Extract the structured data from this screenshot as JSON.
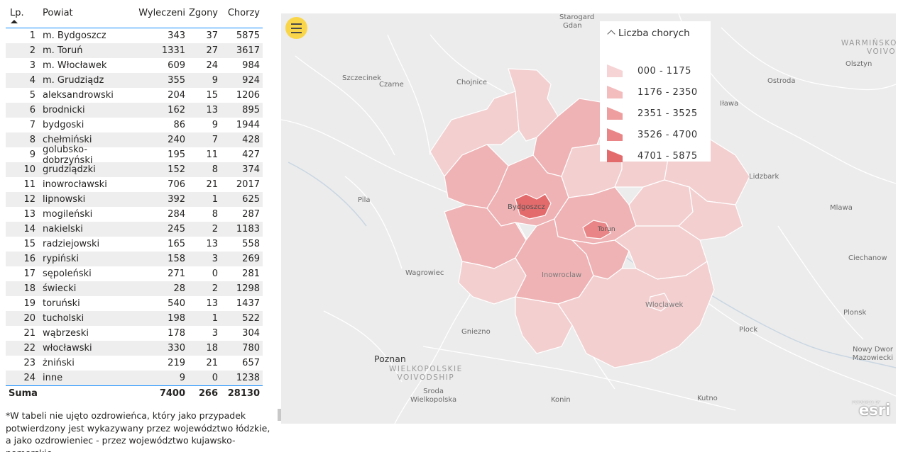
{
  "table": {
    "headers": {
      "lp": "Lp.",
      "powiat": "Powiat",
      "wyleczeni": "Wyleczeni",
      "zgony": "Zgony",
      "chorzy": "Chorzy"
    },
    "rows": [
      [
        "1",
        "m. Bydgoszcz",
        "343",
        "37",
        "5875"
      ],
      [
        "2",
        "m. Toruń",
        "1331",
        "27",
        "3617"
      ],
      [
        "3",
        "m. Włocławek",
        "609",
        "24",
        "984"
      ],
      [
        "4",
        "m. Grudziądz",
        "355",
        "9",
        "924"
      ],
      [
        "5",
        "aleksandrowski",
        "204",
        "15",
        "1206"
      ],
      [
        "6",
        "brodnicki",
        "162",
        "13",
        "895"
      ],
      [
        "7",
        "bydgoski",
        "86",
        "9",
        "1944"
      ],
      [
        "8",
        "chełmiński",
        "240",
        "7",
        "428"
      ],
      [
        "9",
        "golubsko-dobrzyński",
        "195",
        "11",
        "427"
      ],
      [
        "10",
        "grudziądzki",
        "152",
        "8",
        "374"
      ],
      [
        "11",
        "inowrocławski",
        "706",
        "21",
        "2017"
      ],
      [
        "12",
        "lipnowski",
        "392",
        "1",
        "625"
      ],
      [
        "13",
        "mogileński",
        "284",
        "8",
        "287"
      ],
      [
        "14",
        "nakielski",
        "245",
        "2",
        "1183"
      ],
      [
        "15",
        "radziejowski",
        "165",
        "13",
        "558"
      ],
      [
        "16",
        "rypiński",
        "158",
        "3",
        "269"
      ],
      [
        "17",
        "sępoleński",
        "271",
        "0",
        "281"
      ],
      [
        "18",
        "świecki",
        "28",
        "2",
        "1298"
      ],
      [
        "19",
        "toruński",
        "540",
        "13",
        "1437"
      ],
      [
        "20",
        "tucholski",
        "198",
        "1",
        "522"
      ],
      [
        "21",
        "wąbrzeski",
        "178",
        "3",
        "304"
      ],
      [
        "22",
        "włocławski",
        "330",
        "18",
        "780"
      ],
      [
        "23",
        "żniński",
        "219",
        "21",
        "657"
      ],
      [
        "24",
        "inne",
        "9",
        "0",
        "1238"
      ]
    ],
    "sum": {
      "label": "Suma",
      "wyleczeni": "7400",
      "zgony": "266",
      "chorzy": "28130"
    }
  },
  "footnote": [
    "*W tabeli nie ujęto ozdrowieńca, który jako przypadek",
    "potwierdzony jest wykazywany przez województwo łódzkie,",
    "a jako ozdrowieniec - przez województwo kujawsko-pomorskie."
  ],
  "map": {
    "menu_icon": "hamburger-menu-icon",
    "legend": {
      "title": "Liczba chorych",
      "items": [
        {
          "label": "000 - 1175",
          "color": "#f6d3d4"
        },
        {
          "label": "1176 - 2350",
          "color": "#f3bcbd"
        },
        {
          "label": "2351 - 3525",
          "color": "#ee9e9f"
        },
        {
          "label": "3526 - 4700",
          "color": "#e98586"
        },
        {
          "label": "4701 - 5875",
          "color": "#e36b6c"
        }
      ]
    },
    "places": {
      "starogard": "Starogard",
      "gdan": "Gdan",
      "szczecinek": "Szczecinek",
      "czarne": "Czarne",
      "chojnice": "Chojnice",
      "warminsko_l1": "WARMIŃSKO",
      "warminsko_l2": "VOIVOD",
      "olsztyn": "Olsztyn",
      "ostroda": "Ostroda",
      "ilawa": "Iława",
      "lidzbark": "Lidzbark",
      "pila": "Pila",
      "mlawa": "Mlawa",
      "bydgoszcz": "Bydgoszcz",
      "torun": "Torun",
      "ciechanow": "Ciechanow",
      "wagrowiec": "Wagrowiec",
      "inowroclaw": "Inowroclaw",
      "wloclawek": "Wloclawek",
      "plonsk": "Plonsk",
      "plock": "Plock",
      "gniezno": "Gniezno",
      "poznan": "Poznan",
      "wielkopolskie_l1": "WIELKOPOLSKIE",
      "wielkopolskie_l2": "VOIVODSHIP",
      "nowy_dwor_l1": "Nowy Dwor",
      "nowy_dwor_l2": "Mazowiecki",
      "sroda_l1": "Sroda",
      "sroda_l2": "Wielkopolska",
      "konin": "Konin",
      "kutno": "Kutno"
    },
    "esri_logo": "esri",
    "esri_powered": "POWERED BY"
  }
}
